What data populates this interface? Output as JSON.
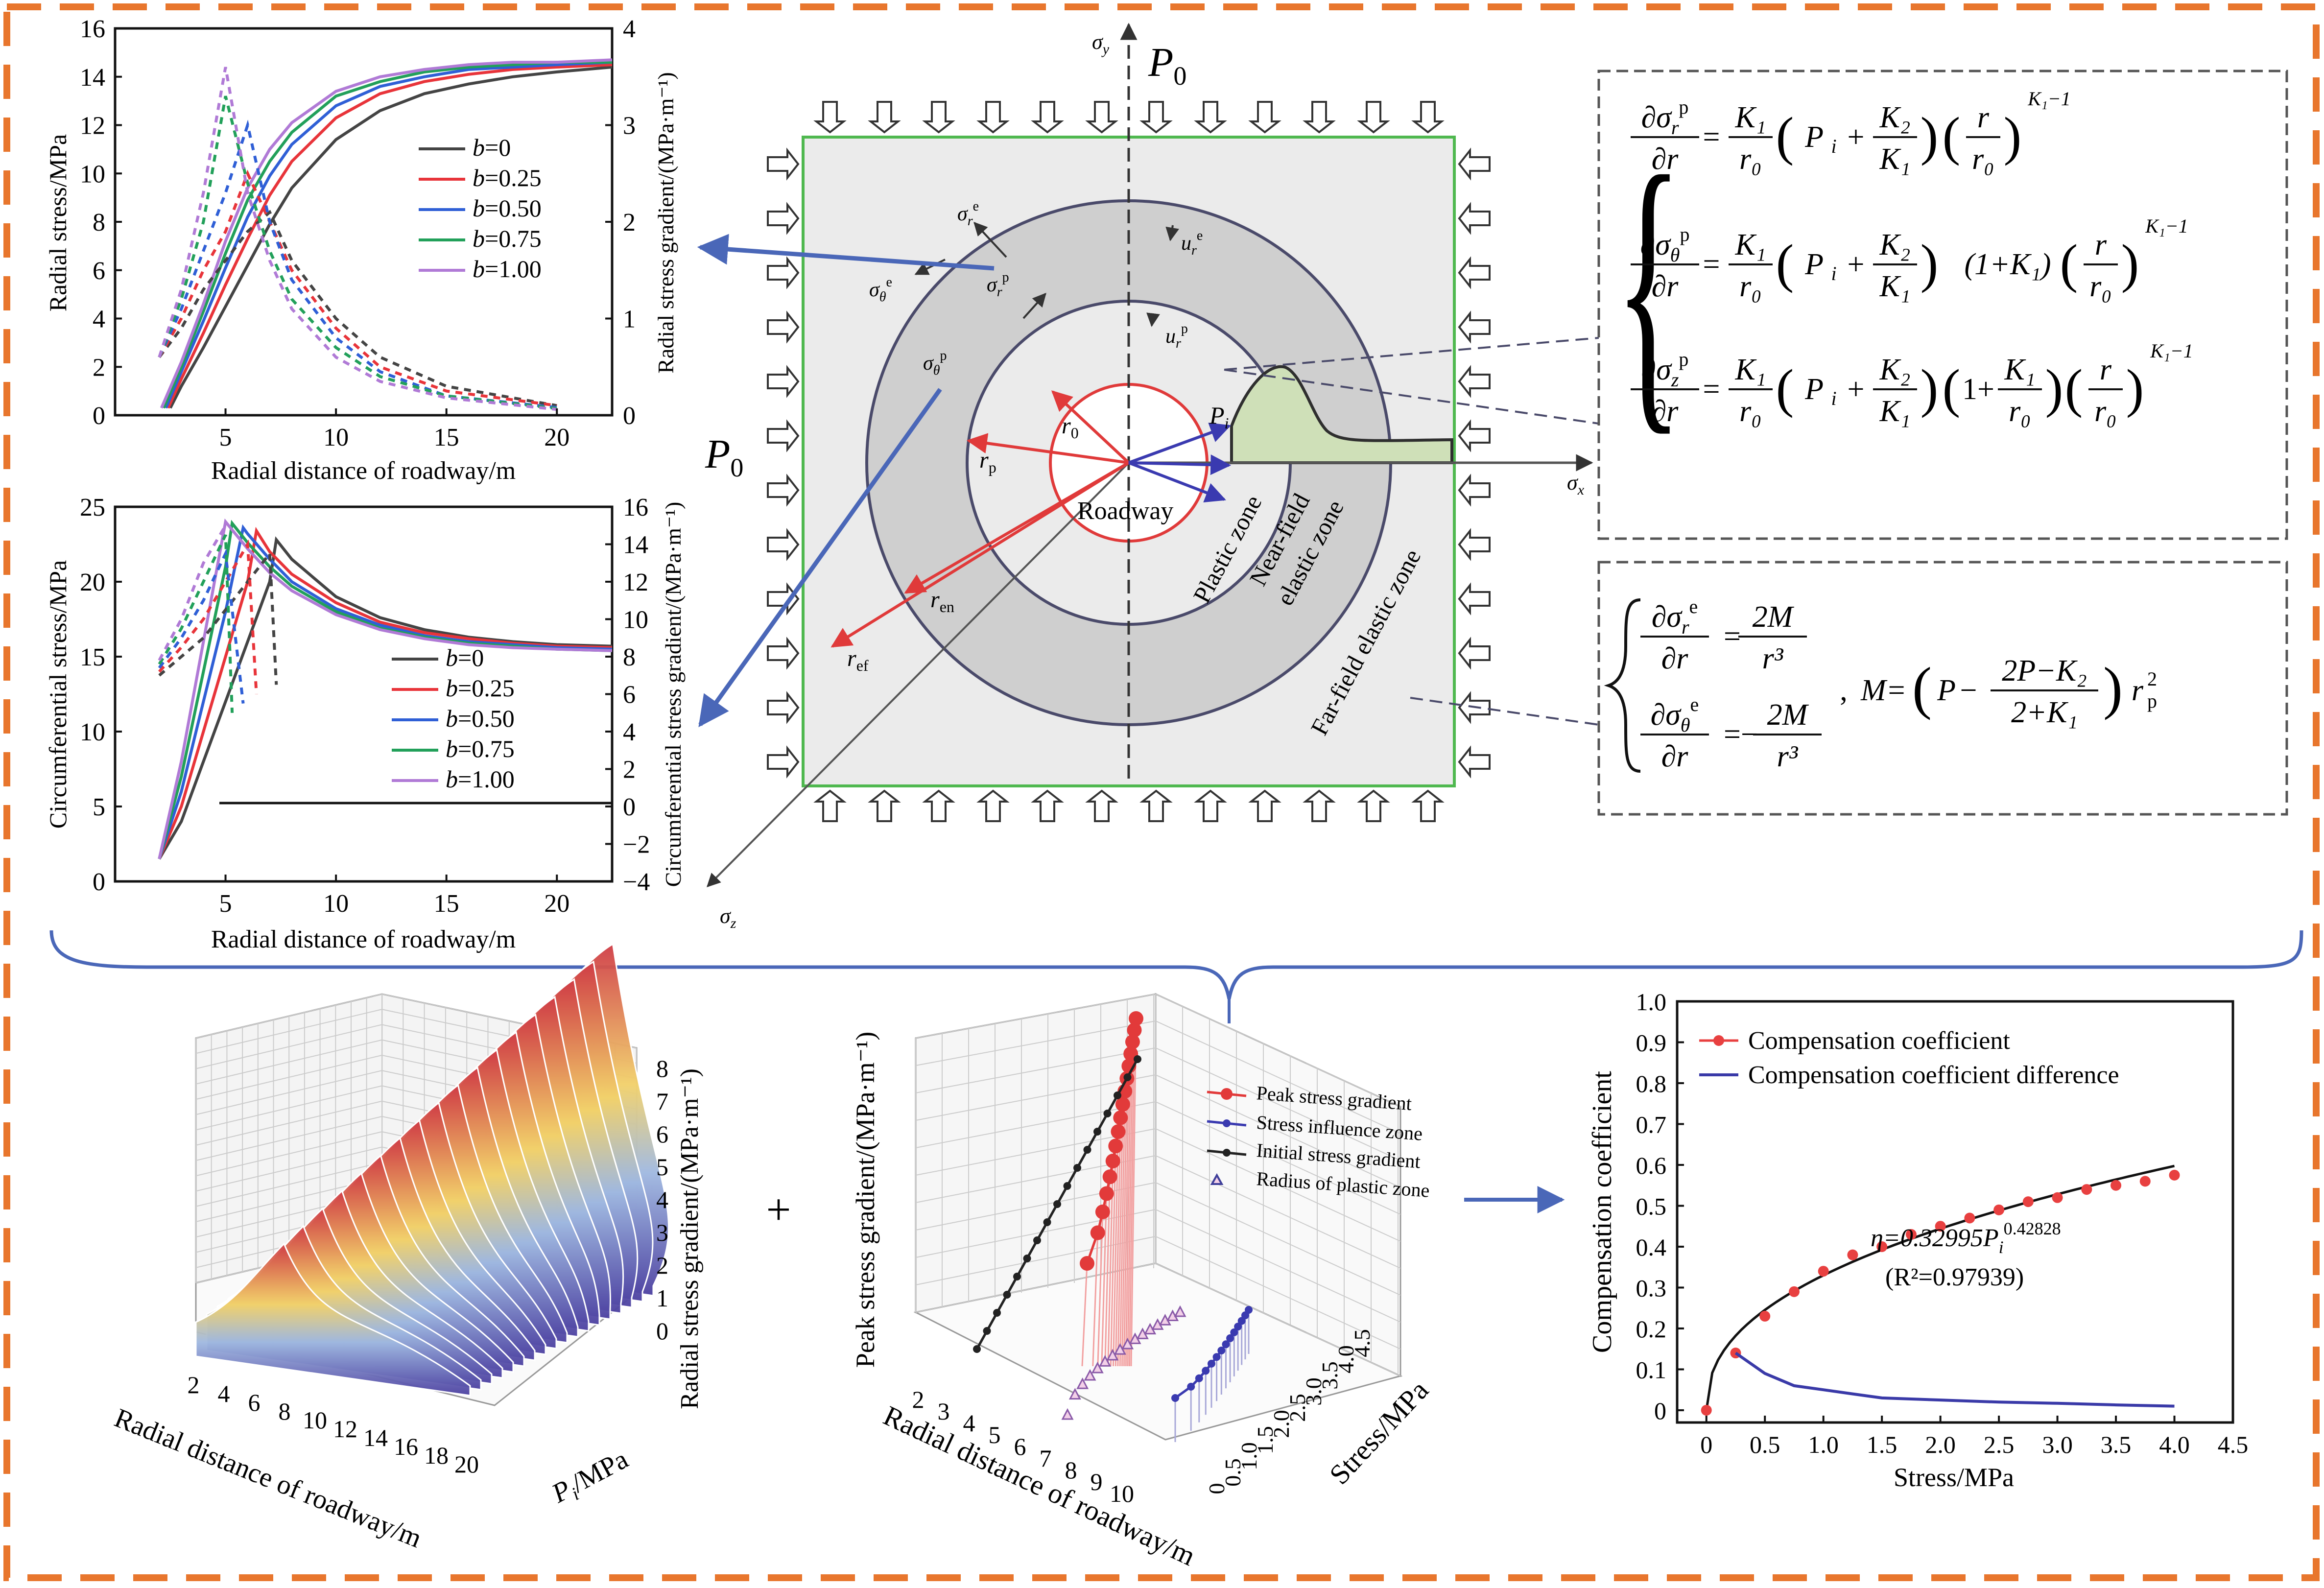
{
  "colors": {
    "frame": "#e8762d",
    "b0": "#444444",
    "b025": "#e8343a",
    "b050": "#2f5fd6",
    "b075": "#22a05a",
    "b100": "#b07ad6",
    "arrow_blue": "#4a67b8",
    "arrow_red": "#e03a3a",
    "square_fill": "#ebebeb",
    "ring_fill": "#cfcfcf",
    "plastic_green": "#cfe0b8",
    "peak_red": "#e23a3a",
    "influence_blue": "#3a3ab0",
    "purple": "#3f3f9a"
  },
  "radial_panel": {
    "ylabel": "Radial stress/MPa",
    "y2label": "Radial stress gradient/(MPa·m⁻¹)",
    "xlabel": "Radial distance of roadway/m",
    "xticks": [
      "5",
      "10",
      "15",
      "20"
    ],
    "yticks": [
      "0",
      "2",
      "4",
      "6",
      "8",
      "10",
      "12",
      "14",
      "16"
    ],
    "y2ticks": [
      "0",
      "1",
      "2",
      "3",
      "4"
    ],
    "legend": [
      "b=0",
      "b=0.25",
      "b=0.50",
      "b=0.75",
      "b=1.00"
    ]
  },
  "circ_panel": {
    "ylabel": "Circumferential stress/MPa",
    "y2label": "Circumferential stress gradient/(MPa·m⁻¹)",
    "xlabel": "Radial distance of roadway/m",
    "xticks": [
      "5",
      "10",
      "15",
      "20"
    ],
    "yticks": [
      "0",
      "5",
      "10",
      "15",
      "20",
      "25"
    ],
    "y2ticks": [
      "−4",
      "−2",
      "0",
      "2",
      "4",
      "6",
      "8",
      "10",
      "12",
      "14",
      "16"
    ],
    "legend": [
      "b=0",
      "b=0.25",
      "b=0.50",
      "b=0.75",
      "b=1.00"
    ]
  },
  "diagram": {
    "p0_top": "P",
    "p0_left": "P",
    "p0_sub": "0",
    "sigma_y": "σ",
    "sigma_y_sub": "y",
    "sigma_x": "σ",
    "sigma_x_sub": "x",
    "sigma_z": "σ",
    "sigma_z_sub": "z",
    "roadway": "Roadway",
    "plastic_zone": "Plastic zone",
    "near_field_1": "Near-field",
    "near_field_2": "elastic zone",
    "far_field": "Far-field elastic zone",
    "r0": "r",
    "r0_sub": "0",
    "rp": "r",
    "rp_sub": "p",
    "ren": "r",
    "ren_sub": "en",
    "ref": "r",
    "ref_sub": "ef",
    "Pi": "P",
    "Pi_sub": "i",
    "sig_re": "σ",
    "sig_re_sub": "r",
    "sig_re_sup": "e",
    "sig_te": "σ",
    "sig_te_sub": "θ",
    "sig_te_sup": "e",
    "sig_rp": "σ",
    "sig_rp_sub": "r",
    "sig_rp_sup": "p",
    "sig_tp": "σ",
    "sig_tp_sub": "θ",
    "sig_tp_sup": "p",
    "ure": "u",
    "ure_sub": "r",
    "ure_sup": "e",
    "urp": "u",
    "urp_sub": "r",
    "urp_sup": "p"
  },
  "eq1": {
    "lhs_num": [
      "∂σ_r^p",
      "∂σ_θ^p",
      "∂σ_z^p"
    ],
    "lhs_den": "∂r",
    "K1": "K",
    "K2": "K",
    "r0": "r",
    "Pi": "P",
    "r": "r",
    "one": "1",
    "exponent": "K₁−1"
  },
  "eq2": {
    "lhs1": "∂σ_r^e",
    "lhs2": "∂σ_θ^e",
    "den": "∂r",
    "rhs_num": "2M",
    "rhs_den": "r³",
    "minus": "−",
    "M_def": "M=",
    "P": "P",
    "two_P_minus_K2": "2P−K",
    "two_plus_K1": "2+K",
    "rp2": "r",
    "rp2_sub": "p",
    "rp2_sup": "2"
  },
  "surface3d": {
    "zlabel": "Radial stress gradient/(MPa·m⁻¹)",
    "xlabel": "Radial distance of roadway/m",
    "ylabel": "P",
    "ylabel_sub": "i",
    "ylabel_unit": "/MPa",
    "xticks": [
      "2",
      "4",
      "6",
      "8",
      "10",
      "12",
      "14",
      "16",
      "18",
      "20"
    ],
    "zticks": [
      "0",
      "1",
      "2",
      "3",
      "4",
      "5",
      "6",
      "7",
      "8"
    ]
  },
  "plus_sign": "+",
  "scatter3d": {
    "zlabel": "Peak stress gradient/(MPa·m⁻¹)",
    "xlabel": "Radial distance of roadway/m",
    "ylabel": "Stress/MPa",
    "xticks": [
      "2",
      "3",
      "4",
      "5",
      "6",
      "7",
      "8",
      "9",
      "10"
    ],
    "yticks": [
      "0",
      "0.5",
      "1.0",
      "1.5",
      "2.0",
      "2.5",
      "3.0",
      "3.5",
      "4.0",
      "4.5"
    ],
    "legend": [
      "Peak stress gradient",
      "Stress influence zone",
      "Initial stress gradient",
      "Radius of plastic zone"
    ]
  },
  "comp_chart": {
    "ylabel": "Compensation coefficient",
    "xlabel": "Stress/MPa",
    "legend": [
      "Compensation coefficient",
      "Compensation coefficient difference"
    ],
    "eq_text": "η=0.32995P",
    "eq_sub": "i",
    "eq_sup": "0.42828",
    "r2_text": "(R²=0.97939)",
    "xticks": [
      "0",
      "0.5",
      "1.0",
      "1.5",
      "2.0",
      "2.5",
      "3.0",
      "3.5",
      "4.0",
      "4.5"
    ],
    "yticks": [
      "0",
      "0.1",
      "0.2",
      "0.3",
      "0.4",
      "0.5",
      "0.6",
      "0.7",
      "0.8",
      "0.9",
      "1.0"
    ]
  },
  "chart_data": [
    {
      "type": "line",
      "title": "",
      "xlabel": "Radial distance of roadway/m",
      "ylabel": "Radial stress/MPa",
      "y2label": "Radial stress gradient/(MPa·m⁻¹)",
      "xlim": [
        0,
        22.5
      ],
      "ylim": [
        0,
        16
      ],
      "y2lim": [
        0,
        4
      ],
      "series": [
        {
          "name": "b=0",
          "x": [
            2.5,
            3,
            4,
            5,
            6,
            7,
            8,
            10,
            12,
            14,
            16,
            18,
            20,
            22.5
          ],
          "values": [
            0.3,
            1.2,
            2.8,
            4.5,
            6.2,
            7.9,
            9.4,
            11.4,
            12.6,
            13.3,
            13.7,
            14.0,
            14.2,
            14.4
          ]
        },
        {
          "name": "b=0.25",
          "x": [
            2.4,
            3,
            4,
            5,
            6,
            7,
            8,
            10,
            12,
            14,
            16,
            18,
            20,
            22.5
          ],
          "values": [
            0.3,
            1.5,
            3.4,
            5.4,
            7.3,
            9.1,
            10.5,
            12.3,
            13.3,
            13.8,
            14.1,
            14.3,
            14.4,
            14.5
          ]
        },
        {
          "name": "b=0.50",
          "x": [
            2.3,
            3,
            4,
            5,
            6,
            7,
            8,
            10,
            12,
            14,
            16,
            18,
            20,
            22.5
          ],
          "values": [
            0.3,
            1.8,
            3.9,
            6.1,
            8.2,
            9.9,
            11.2,
            12.8,
            13.6,
            14.0,
            14.3,
            14.4,
            14.5,
            14.6
          ]
        },
        {
          "name": "b=0.75",
          "x": [
            2.2,
            3,
            4,
            5,
            6,
            7,
            8,
            10,
            12,
            14,
            16,
            18,
            20,
            22.5
          ],
          "values": [
            0.3,
            2.0,
            4.3,
            6.7,
            8.9,
            10.5,
            11.7,
            13.2,
            13.8,
            14.2,
            14.4,
            14.5,
            14.6,
            14.6
          ]
        },
        {
          "name": "b=1.00",
          "x": [
            2.1,
            3,
            4,
            5,
            6,
            7,
            8,
            10,
            12,
            14,
            16,
            18,
            20,
            22.5
          ],
          "values": [
            0.3,
            2.2,
            4.6,
            7.2,
            9.4,
            11.0,
            12.1,
            13.4,
            14.0,
            14.3,
            14.5,
            14.6,
            14.6,
            14.7
          ]
        }
      ],
      "gradient_series": [
        {
          "name": "b=0",
          "x": [
            2,
            3,
            4,
            5,
            6,
            7,
            8,
            10,
            12,
            15,
            20
          ],
          "values": [
            0.6,
            0.9,
            1.3,
            1.6,
            1.9,
            2.1,
            1.6,
            1.0,
            0.6,
            0.3,
            0.1
          ]
        },
        {
          "name": "b=0.25",
          "x": [
            2,
            3,
            4,
            5,
            6,
            7,
            8,
            10,
            12,
            15,
            20
          ],
          "values": [
            0.6,
            1.0,
            1.5,
            1.9,
            2.5,
            2.0,
            1.5,
            0.9,
            0.5,
            0.25,
            0.1
          ]
        },
        {
          "name": "b=0.50",
          "x": [
            2,
            3,
            4,
            5,
            6,
            7,
            8,
            10,
            12,
            15,
            20
          ],
          "values": [
            0.6,
            1.1,
            1.7,
            2.3,
            3.0,
            2.0,
            1.4,
            0.8,
            0.45,
            0.2,
            0.08
          ]
        },
        {
          "name": "b=0.75",
          "x": [
            2,
            3,
            4,
            5,
            6,
            7,
            8,
            10,
            12,
            15,
            20
          ],
          "values": [
            0.6,
            1.2,
            2.0,
            3.3,
            2.4,
            1.7,
            1.2,
            0.7,
            0.4,
            0.2,
            0.07
          ]
        },
        {
          "name": "b=1.00",
          "x": [
            2,
            3,
            4,
            5,
            6,
            7,
            8,
            10,
            12,
            15,
            20
          ],
          "values": [
            0.6,
            1.3,
            2.3,
            3.6,
            2.3,
            1.6,
            1.1,
            0.6,
            0.35,
            0.18,
            0.06
          ]
        }
      ]
    },
    {
      "type": "line",
      "title": "",
      "xlabel": "Radial distance of roadway/m",
      "ylabel": "Circumferential stress/MPa",
      "y2label": "Circumferential stress gradient/(MPa·m⁻¹)",
      "xlim": [
        0,
        22.5
      ],
      "ylim": [
        0,
        25
      ],
      "y2lim": [
        -4,
        16
      ],
      "series": [
        {
          "name": "b=0",
          "x": [
            2,
            3,
            4,
            5,
            6,
            7,
            7.3,
            8,
            10,
            12,
            14,
            16,
            18,
            20,
            22.5
          ],
          "values": [
            1.5,
            4,
            8,
            12,
            16,
            20,
            22.8,
            21.5,
            19.0,
            17.6,
            16.8,
            16.3,
            16.0,
            15.8,
            15.7
          ]
        },
        {
          "name": "b=0.25",
          "x": [
            2,
            3,
            4,
            5,
            6,
            6.4,
            7,
            8,
            10,
            12,
            14,
            16,
            18,
            20,
            22.5
          ],
          "values": [
            1.5,
            5,
            10,
            15,
            20,
            23.4,
            22.0,
            20.5,
            18.6,
            17.3,
            16.6,
            16.2,
            15.9,
            15.7,
            15.6
          ]
        },
        {
          "name": "b=0.50",
          "x": [
            2,
            3,
            4,
            5,
            5.8,
            6,
            7,
            8,
            10,
            12,
            14,
            16,
            18,
            20,
            22.5
          ],
          "values": [
            1.5,
            6,
            12,
            18,
            23.6,
            23.2,
            21.5,
            20.0,
            18.2,
            17.1,
            16.4,
            16.0,
            15.8,
            15.6,
            15.5
          ]
        },
        {
          "name": "b=0.75",
          "x": [
            2,
            3,
            4,
            5,
            5.3,
            6,
            7,
            8,
            10,
            12,
            14,
            16,
            18,
            20,
            22.5
          ],
          "values": [
            1.5,
            7,
            14,
            21,
            23.9,
            22.6,
            21.0,
            19.7,
            18.0,
            16.9,
            16.3,
            15.9,
            15.7,
            15.5,
            15.4
          ]
        },
        {
          "name": "b=1.00",
          "x": [
            2,
            3,
            4,
            5,
            6,
            7,
            8,
            10,
            12,
            14,
            16,
            18,
            20,
            22.5
          ],
          "values": [
            1.5,
            8,
            16,
            24.0,
            22.2,
            20.6,
            19.4,
            17.8,
            16.8,
            16.2,
            15.8,
            15.6,
            15.5,
            15.4
          ]
        }
      ],
      "gradient_series": [
        {
          "name": "b=0",
          "x": [
            2,
            3,
            4,
            5,
            6,
            7,
            7.3
          ],
          "values": [
            7,
            8,
            9,
            10.5,
            12,
            13.5,
            6.5
          ]
        },
        {
          "name": "b=0.25",
          "x": [
            2,
            3,
            4,
            5,
            6,
            6.4
          ],
          "values": [
            7.2,
            8.5,
            10,
            12,
            14,
            6
          ]
        },
        {
          "name": "b=0.50",
          "x": [
            2,
            3,
            4,
            5,
            5.8
          ],
          "values": [
            7.4,
            9,
            11,
            13.5,
            5.5
          ]
        },
        {
          "name": "b=0.75",
          "x": [
            2,
            3,
            4,
            5,
            5.3
          ],
          "values": [
            7.6,
            9.5,
            12,
            14.5,
            5
          ]
        },
        {
          "name": "b=1.00",
          "x": [
            2,
            3,
            4,
            5
          ],
          "values": [
            7.8,
            10,
            13,
            15
          ]
        }
      ]
    },
    {
      "type": "line",
      "title": "",
      "xlabel": "Stress/MPa",
      "ylabel": "Compensation coefficient",
      "xlim": [
        -0.25,
        4.5
      ],
      "ylim": [
        0,
        1.0
      ],
      "series": [
        {
          "name": "Compensation coefficient",
          "x": [
            0,
            0.25,
            0.5,
            0.75,
            1.0,
            1.25,
            1.5,
            1.75,
            2.0,
            2.25,
            2.5,
            2.75,
            3.0,
            3.25,
            3.5,
            3.75,
            4.0
          ],
          "values": [
            0.0,
            0.14,
            0.23,
            0.29,
            0.34,
            0.38,
            0.4,
            0.43,
            0.45,
            0.47,
            0.49,
            0.51,
            0.52,
            0.54,
            0.55,
            0.56,
            0.575
          ]
        },
        {
          "name": "Compensation coefficient difference",
          "x": [
            0.25,
            0.5,
            0.75,
            1.0,
            1.25,
            1.5,
            2.0,
            2.5,
            3.0,
            3.5,
            4.0
          ],
          "values": [
            0.14,
            0.09,
            0.06,
            0.05,
            0.04,
            0.03,
            0.025,
            0.02,
            0.017,
            0.013,
            0.01
          ]
        }
      ]
    }
  ]
}
